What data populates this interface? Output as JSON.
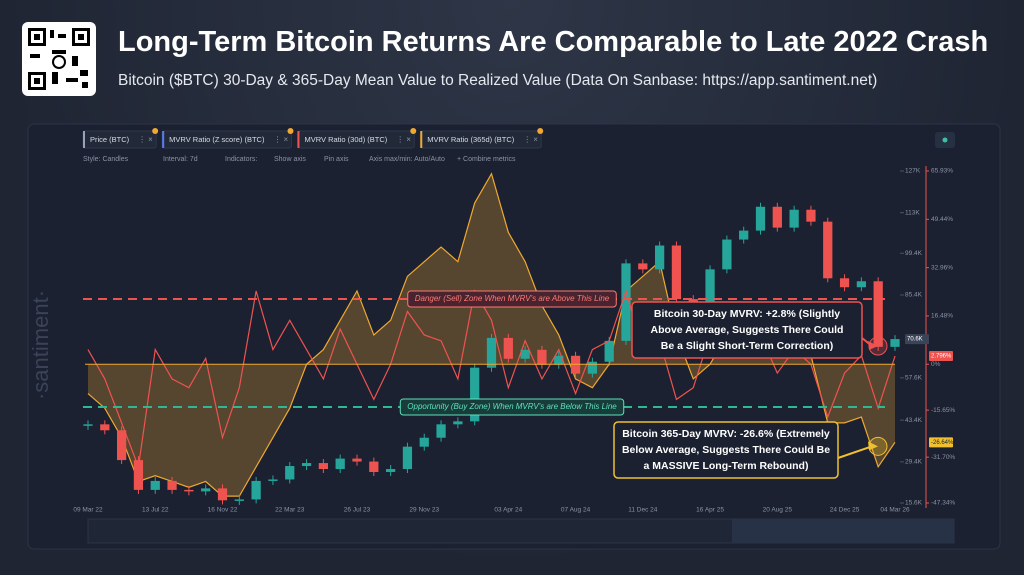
{
  "header": {
    "title": "Long-Term Bitcoin Returns Are Comparable to Late 2022 Crash",
    "subtitle": "Bitcoin ($BTC) 30-Day & 365-Day Mean Value to Realized Value (Data On Sanbase: https://app.santiment.net)"
  },
  "toolbar": [
    "Style: Candles",
    "Interval: 7d",
    "Indicators:",
    "Show axis",
    "Pin axis",
    "Axis max/min: Auto/Auto",
    "+ Combine metrics"
  ],
  "extra_metric": "MVRV Ratio (Z score) (BTC)",
  "watermark": "·santiment·",
  "chart_data": {
    "type": "combo",
    "categories": [
      "09 Mar 22",
      null,
      null,
      null,
      "13 Jul 22",
      null,
      null,
      null,
      "16 Nov 22",
      null,
      null,
      null,
      "22 Mar 23",
      null,
      null,
      null,
      "26 Jul 23",
      null,
      null,
      null,
      "29 Nov 23",
      null,
      null,
      null,
      null,
      "03 Apr 24",
      null,
      null,
      null,
      "07 Aug 24",
      null,
      null,
      null,
      "11 Dec 24",
      null,
      null,
      null,
      "16 Apr 25",
      null,
      null,
      null,
      "20 Aug 25",
      null,
      null,
      null,
      "24 Dec 25",
      null,
      null,
      "04 Mar 26"
    ],
    "ylim": [
      15600,
      127000
    ],
    "yticks": [
      {
        "value": 127000,
        "label": "127K"
      },
      {
        "value": 113000,
        "label": "113K"
      },
      {
        "value": 99400,
        "label": "99.4K"
      },
      {
        "value": 85400,
        "label": "85.4K"
      },
      {
        "value": 57600,
        "label": "57.6K"
      },
      {
        "value": 43400,
        "label": "43.4K"
      },
      {
        "value": 29400,
        "label": "29.4K"
      },
      {
        "value": 15600,
        "label": "15.6K"
      }
    ],
    "y2lim": [
      -47.34,
      65.93
    ],
    "y2ticks": [
      {
        "value": 65.93,
        "label": "65.93%"
      },
      {
        "value": 49.44,
        "label": "49.44%"
      },
      {
        "value": 32.96,
        "label": "32.96%"
      },
      {
        "value": 16.48,
        "label": "16.48%"
      },
      {
        "value": 0,
        "label": "0%"
      },
      {
        "value": -15.65,
        "label": "-15.65%"
      },
      {
        "value": -31.7,
        "label": "-31.70%"
      },
      {
        "value": -47.34,
        "label": "-47.34%"
      }
    ],
    "series": [
      {
        "name": "Price (BTC)",
        "type": "candles",
        "color": "#26a69a",
        "down_color": "#ef5350",
        "values": [
          42000,
          40000,
          30000,
          20000,
          23000,
          20000,
          19500,
          20500,
          16500,
          16800,
          23000,
          23500,
          28000,
          29000,
          27000,
          30500,
          29500,
          26000,
          27000,
          34500,
          37500,
          42000,
          43000,
          61000,
          71000,
          64000,
          67000,
          62000,
          65000,
          59000,
          63000,
          70000,
          96000,
          94000,
          102000,
          84000,
          82000,
          94000,
          104000,
          107000,
          115000,
          108000,
          114000,
          110000,
          91000,
          88000,
          90000,
          68000,
          70600
        ],
        "value_labels": [
          null,
          null,
          null,
          null,
          null,
          null,
          null,
          null,
          null,
          null,
          null,
          null,
          null,
          null,
          null,
          null,
          null,
          null,
          null,
          null,
          null,
          null,
          null,
          null,
          null,
          null,
          null,
          null,
          null,
          null,
          null,
          null,
          null,
          null,
          null,
          null,
          null,
          null,
          null,
          null,
          null,
          null,
          null,
          null,
          null,
          null,
          null,
          null,
          "70.6K"
        ]
      },
      {
        "name": "MVRV Ratio (30d) (BTC)",
        "type": "line",
        "axis": "y2",
        "color": "#ef5350",
        "values": [
          5,
          -5,
          -20,
          -35,
          5,
          -5,
          -8,
          2,
          -25,
          -8,
          25,
          5,
          15,
          5,
          -5,
          12,
          0,
          -12,
          0,
          18,
          10,
          8,
          -5,
          25,
          15,
          -8,
          8,
          -5,
          5,
          -10,
          5,
          8,
          25,
          5,
          8,
          -12,
          -8,
          10,
          12,
          3,
          10,
          -3,
          5,
          0,
          -18,
          -3,
          3,
          -15,
          2.796
        ],
        "value_labels": [
          null,
          null,
          null,
          null,
          null,
          null,
          null,
          null,
          null,
          null,
          null,
          null,
          null,
          null,
          null,
          null,
          null,
          null,
          null,
          null,
          null,
          null,
          null,
          null,
          null,
          null,
          null,
          null,
          null,
          null,
          null,
          null,
          null,
          null,
          null,
          null,
          null,
          null,
          null,
          null,
          null,
          null,
          null,
          null,
          null,
          null,
          null,
          null,
          "2.796%"
        ]
      },
      {
        "name": "MVRV Ratio (365d) (BTC)",
        "type": "area",
        "axis": "y2",
        "color": "#f0a830",
        "values": [
          -10,
          -15,
          -25,
          -40,
          -38,
          -40,
          -42,
          -40,
          -45,
          -45,
          -35,
          -25,
          -15,
          0,
          5,
          15,
          25,
          10,
          15,
          30,
          35,
          40,
          35,
          55,
          65,
          45,
          35,
          20,
          10,
          -5,
          -8,
          0,
          25,
          30,
          35,
          10,
          -5,
          0,
          10,
          8,
          15,
          5,
          5,
          3,
          -20,
          -20,
          -18,
          -35,
          -26.64
        ],
        "value_labels": [
          null,
          null,
          null,
          null,
          null,
          null,
          null,
          null,
          null,
          null,
          null,
          null,
          null,
          null,
          null,
          null,
          null,
          null,
          null,
          null,
          null,
          null,
          null,
          null,
          null,
          null,
          null,
          null,
          null,
          null,
          null,
          null,
          null,
          null,
          null,
          null,
          null,
          null,
          null,
          null,
          null,
          null,
          null,
          null,
          null,
          null,
          null,
          null,
          "-26.64%"
        ]
      }
    ],
    "zones": [
      "Danger (Sell) Zone When MVRV's are Above This Line",
      "Opportunity (Buy Zone) When MVRV's are Below This Line"
    ],
    "annotations": [
      [
        "Bitcoin 30-Day MVRV: +2.8% (Slightly",
        "Above Average, Suggests There Could",
        "Be a Slight Short-Term Correction)"
      ],
      [
        "Bitcoin 365-Day MVRV: -26.6% (Extremely",
        "Below Average, Suggests There Could Be",
        "a MASSIVE Long-Term Rebound)"
      ]
    ]
  }
}
